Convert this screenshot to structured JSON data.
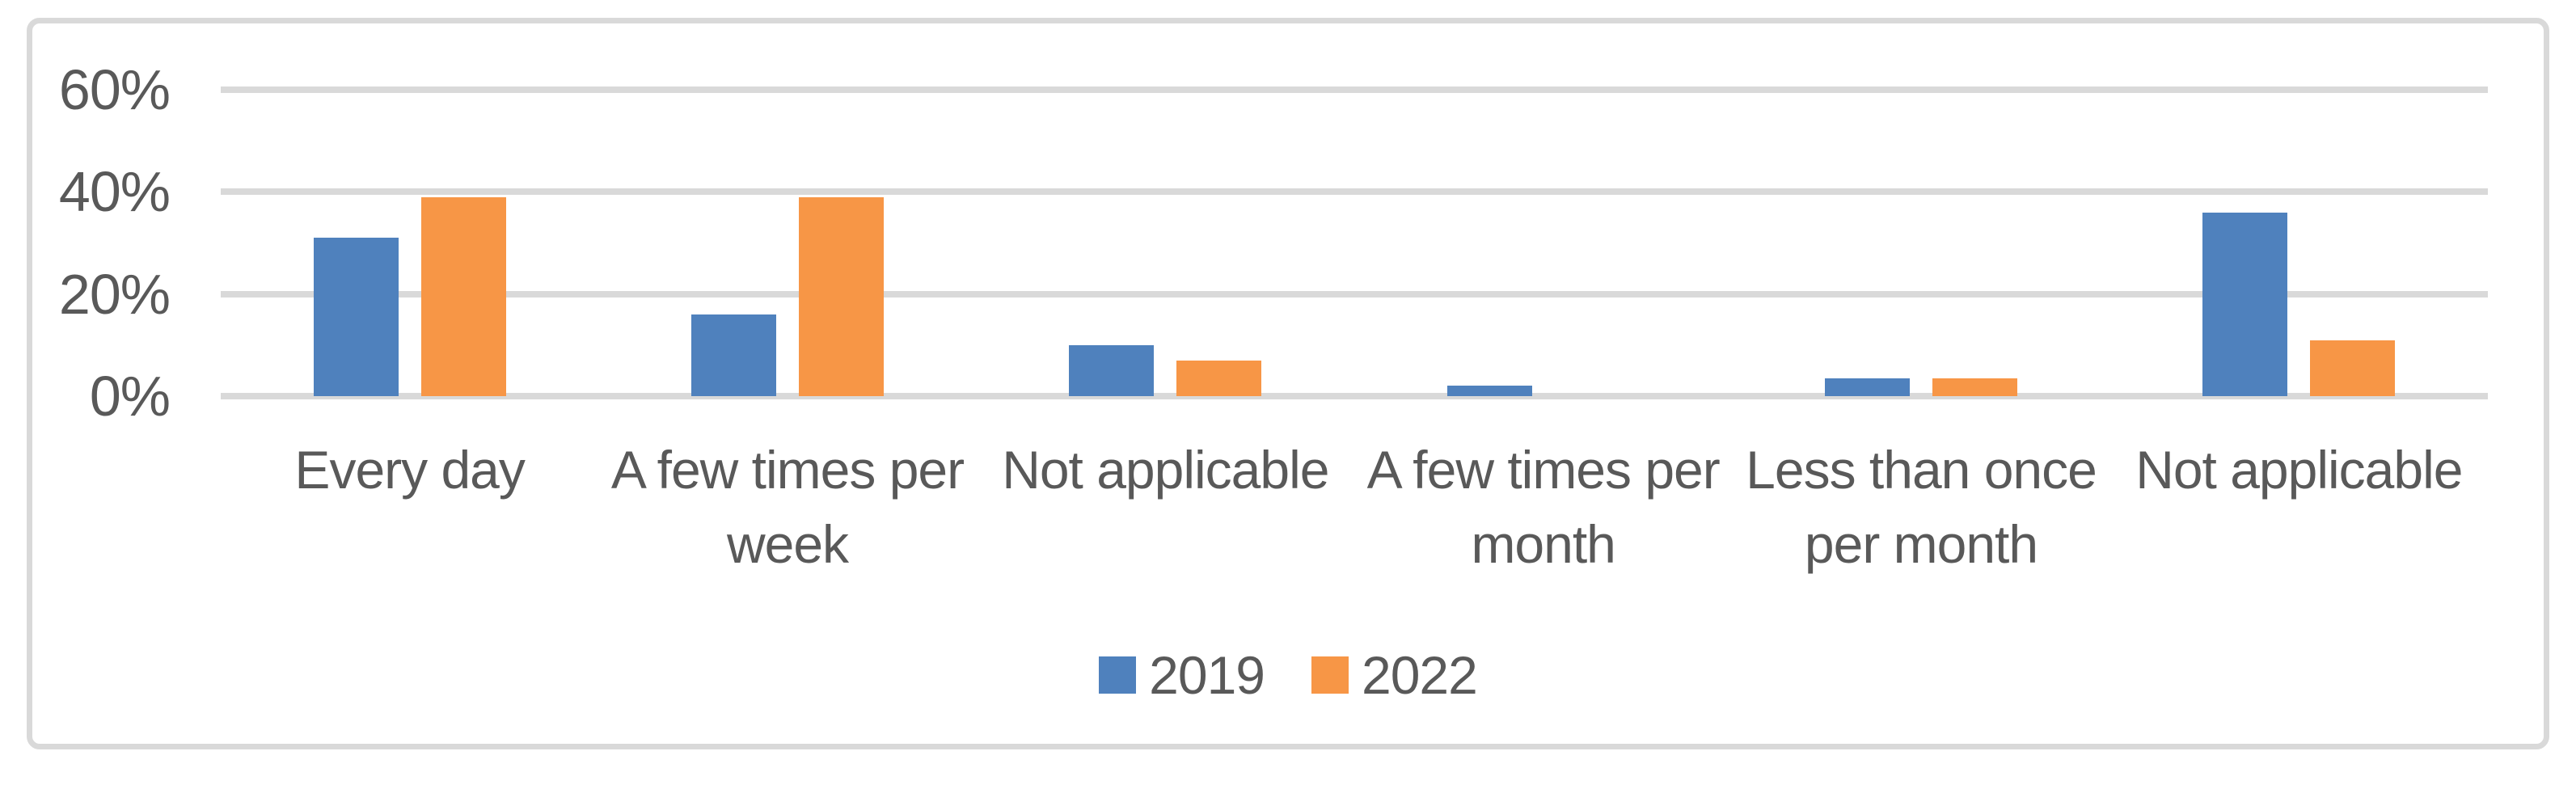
{
  "chart_data": {
    "type": "bar",
    "title": "",
    "categories": [
      "Every day",
      "A few times per week",
      "Not applicable",
      "A few times per month",
      "Less than once per month",
      "Not applicable"
    ],
    "series": [
      {
        "name": "2019",
        "color": "#4F81BD",
        "values": [
          31,
          16,
          10,
          2,
          3.5,
          36
        ]
      },
      {
        "name": "2022",
        "color": "#F79646",
        "values": [
          39,
          39,
          7,
          0,
          3.5,
          11
        ]
      }
    ],
    "y_axis": {
      "unit": "%",
      "min": 0,
      "max": 60,
      "tick_values": [
        0,
        20,
        40,
        60
      ],
      "tick_labels": [
        "0%",
        "20%",
        "40%",
        "60%"
      ]
    },
    "grid": true,
    "legend_position": "bottom-center",
    "colors": {
      "gridline": "#d9d9d9",
      "frame_border": "#d9d9d9",
      "axis_text": "#595959",
      "background": "#ffffff"
    }
  }
}
